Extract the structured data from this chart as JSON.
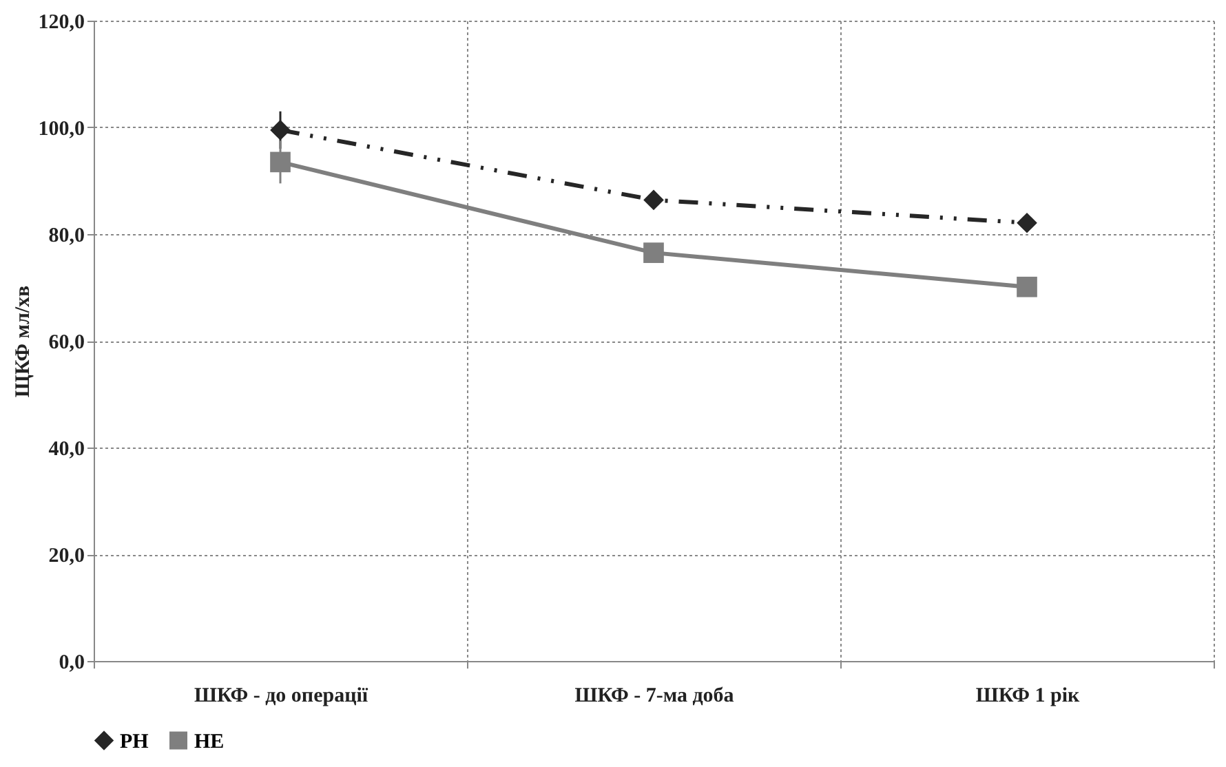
{
  "chart_data": {
    "type": "line",
    "ylabel": "ЩКФ мл/хв",
    "categories": [
      "ШКФ - до операції",
      "ШКФ - 7-ма доба",
      "ШКФ 1 рік"
    ],
    "series": [
      {
        "name": "РН",
        "color": "#262626",
        "values": [
          99.5,
          86.4,
          82.1
        ],
        "errors": [
          3.5,
          null,
          null
        ],
        "marker": "diamond",
        "line_style": "dashdotdot"
      },
      {
        "name": "НЕ",
        "color": "#7f7f7f",
        "values": [
          93.5,
          76.5,
          70.1
        ],
        "errors": [
          4,
          null,
          null
        ],
        "marker": "square",
        "line_style": "solid"
      }
    ],
    "ylim": [
      0,
      120
    ],
    "yticks": [
      {
        "value": 0,
        "label": "0,0"
      },
      {
        "value": 20,
        "label": "20,0"
      },
      {
        "value": 40,
        "label": "40,0"
      },
      {
        "value": 60,
        "label": "60,0"
      },
      {
        "value": 80,
        "label": "80,0"
      },
      {
        "value": 100,
        "label": "100,0"
      },
      {
        "value": 120,
        "label": "120,0"
      }
    ],
    "grid": true,
    "legend": "bottom"
  }
}
